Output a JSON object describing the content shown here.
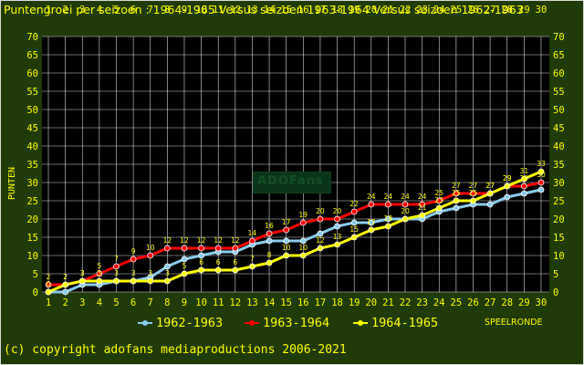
{
  "chart_data": {
    "type": "line",
    "title": "Puntengroei per seizoen : 1964-1965 Versus seizoen 1963-1964 Versus seizoen 1962-1963",
    "xlabel": "SPEELRONDE",
    "ylabel": "PUNTEN",
    "x": [
      1,
      2,
      3,
      4,
      5,
      6,
      7,
      8,
      9,
      10,
      11,
      12,
      13,
      14,
      15,
      16,
      17,
      18,
      19,
      20,
      21,
      22,
      23,
      24,
      25,
      26,
      27,
      28,
      29,
      30
    ],
    "xlim": [
      1,
      30
    ],
    "ylim": [
      0,
      70
    ],
    "yticks": [
      0,
      5,
      10,
      15,
      20,
      25,
      30,
      35,
      40,
      45,
      50,
      55,
      60,
      65,
      70
    ],
    "grid": true,
    "legend_position": "bottom",
    "series": [
      {
        "name": "1962-1963",
        "color": "#88ccee",
        "values": [
          0,
          0,
          2,
          2,
          3,
          3,
          4,
          7,
          9,
          10,
          11,
          11,
          13,
          14,
          14,
          14,
          16,
          18,
          19,
          19,
          20,
          20,
          20,
          22,
          23,
          24,
          24,
          26,
          27,
          28
        ],
        "show_labels": false
      },
      {
        "name": "1963-1964",
        "color": "#ff0000",
        "values": [
          2,
          2,
          3,
          5,
          7,
          9,
          10,
          12,
          12,
          12,
          12,
          12,
          14,
          16,
          17,
          19,
          20,
          20,
          22,
          24,
          24,
          24,
          24,
          25,
          27,
          27,
          27,
          29,
          29,
          30
        ],
        "show_labels": true
      },
      {
        "name": "1964-1965",
        "color": "#ffff00",
        "values": [
          0,
          2,
          3,
          3,
          3,
          3,
          3,
          3,
          5,
          6,
          6,
          6,
          7,
          8,
          10,
          10,
          12,
          13,
          15,
          17,
          18,
          20,
          21,
          23,
          25,
          25,
          27,
          29,
          31,
          33
        ],
        "show_labels": true
      }
    ]
  },
  "legend": {
    "items": [
      "1962-1963",
      "1963-1964",
      "1964-1965"
    ]
  },
  "watermark": "ADOFans",
  "copyright": "(c) copyright adofans mediaproductions 2006-2021"
}
